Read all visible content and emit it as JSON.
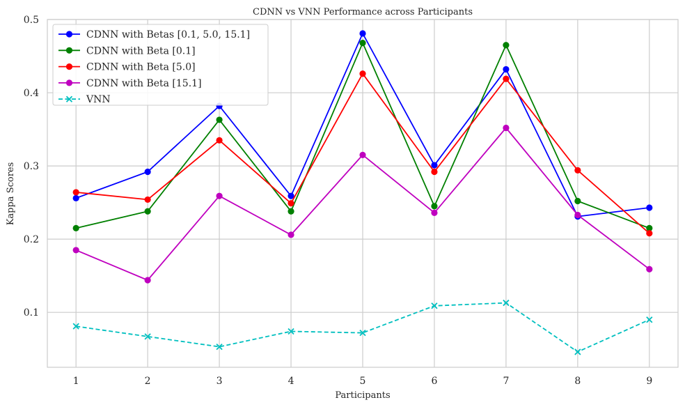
{
  "chart_data": {
    "type": "line",
    "title": "CDNN vs VNN Performance across Participants",
    "xlabel": "Participants",
    "ylabel": "Kappa Scores",
    "categories": [
      "1",
      "2",
      "3",
      "4",
      "5",
      "6",
      "7",
      "8",
      "9"
    ],
    "x": [
      1,
      2,
      3,
      4,
      5,
      6,
      7,
      8,
      9
    ],
    "xlim": [
      0.6,
      9.4
    ],
    "ylim": [
      0.025,
      0.5
    ],
    "yticks": [
      0.1,
      0.2,
      0.3,
      0.4,
      0.5
    ],
    "ytick_labels": [
      "0.1",
      "0.2",
      "0.3",
      "0.4",
      "0.5"
    ],
    "grid": true,
    "legend_position": "top-left",
    "series": [
      {
        "name": "CDNN with Betas [0.1, 5.0, 15.1]",
        "color": "#0000ff",
        "marker": "circle",
        "style": "solid",
        "values": [
          0.256,
          0.292,
          0.382,
          0.259,
          0.481,
          0.301,
          0.432,
          0.231,
          0.243
        ]
      },
      {
        "name": "CDNN with Beta [0.1]",
        "color": "#008000",
        "marker": "circle",
        "style": "solid",
        "values": [
          0.215,
          0.238,
          0.363,
          0.238,
          0.468,
          0.245,
          0.465,
          0.252,
          0.215
        ]
      },
      {
        "name": "CDNN with Beta [5.0]",
        "color": "#ff0000",
        "marker": "circle",
        "style": "solid",
        "values": [
          0.264,
          0.254,
          0.335,
          0.249,
          0.426,
          0.292,
          0.419,
          0.294,
          0.208
        ]
      },
      {
        "name": "CDNN with Beta [15.1]",
        "color": "#bf00bf",
        "marker": "circle",
        "style": "solid",
        "values": [
          0.185,
          0.144,
          0.259,
          0.206,
          0.315,
          0.236,
          0.352,
          0.233,
          0.159
        ]
      },
      {
        "name": "VNN",
        "color": "#00bfbf",
        "marker": "x",
        "style": "dashed",
        "values": [
          0.081,
          0.067,
          0.053,
          0.074,
          0.072,
          0.109,
          0.113,
          0.046,
          0.09
        ]
      }
    ]
  }
}
